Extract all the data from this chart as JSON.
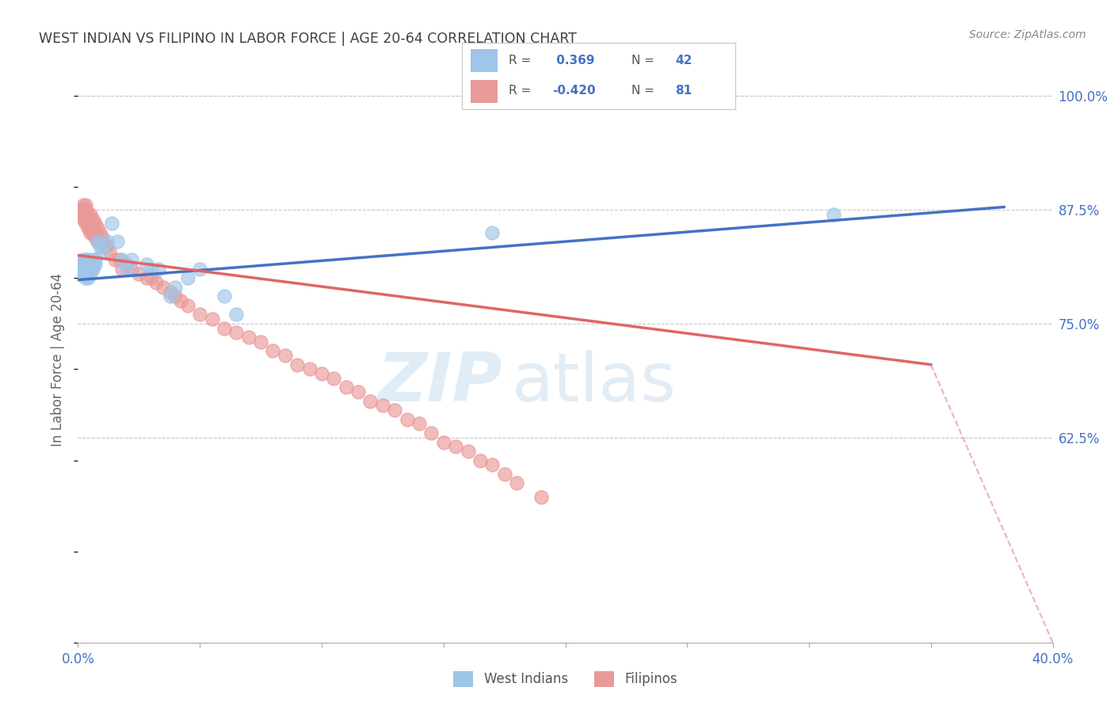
{
  "title": "WEST INDIAN VS FILIPINO IN LABOR FORCE | AGE 20-64 CORRELATION CHART",
  "source_text": "Source: ZipAtlas.com",
  "ylabel": "In Labor Force | Age 20-64",
  "xlim": [
    0.0,
    0.4
  ],
  "ylim": [
    0.4,
    1.02
  ],
  "yticks_right": [
    0.625,
    0.75,
    0.875,
    1.0
  ],
  "ytick_labels_right": [
    "62.5%",
    "75.0%",
    "87.5%",
    "100.0%"
  ],
  "legend_label_blue": "West Indians",
  "legend_label_pink": "Filipinos",
  "blue_scatter_color": "#9fc5e8",
  "pink_scatter_color": "#ea9999",
  "blue_line_color": "#4472c4",
  "pink_line_color": "#e06666",
  "axis_color": "#4472c4",
  "grid_color": "#c8c8c8",
  "title_color": "#404040",
  "blue_line_x0": 0.0,
  "blue_line_y0": 0.798,
  "blue_line_x1": 0.38,
  "blue_line_y1": 0.878,
  "pink_line_x0": 0.0,
  "pink_line_y0": 0.825,
  "pink_line_x1_solid": 0.35,
  "pink_line_y1_solid": 0.705,
  "pink_line_x1_dash": 0.4,
  "pink_line_y1_dash": 0.4,
  "west_indian_x": [
    0.001,
    0.001,
    0.001,
    0.002,
    0.002,
    0.002,
    0.002,
    0.003,
    0.003,
    0.003,
    0.003,
    0.004,
    0.004,
    0.004,
    0.004,
    0.005,
    0.005,
    0.006,
    0.006,
    0.006,
    0.007,
    0.007,
    0.008,
    0.009,
    0.01,
    0.012,
    0.014,
    0.016,
    0.018,
    0.02,
    0.022,
    0.028,
    0.03,
    0.033,
    0.038,
    0.04,
    0.045,
    0.05,
    0.06,
    0.065,
    0.17,
    0.31
  ],
  "west_indian_y": [
    0.81,
    0.805,
    0.815,
    0.82,
    0.815,
    0.81,
    0.805,
    0.82,
    0.815,
    0.81,
    0.8,
    0.82,
    0.81,
    0.8,
    0.815,
    0.81,
    0.805,
    0.82,
    0.815,
    0.81,
    0.82,
    0.815,
    0.84,
    0.835,
    0.83,
    0.84,
    0.86,
    0.84,
    0.82,
    0.81,
    0.82,
    0.815,
    0.81,
    0.81,
    0.78,
    0.79,
    0.8,
    0.81,
    0.78,
    0.76,
    0.85,
    0.87
  ],
  "filipino_x": [
    0.001,
    0.001,
    0.001,
    0.002,
    0.002,
    0.002,
    0.002,
    0.002,
    0.003,
    0.003,
    0.003,
    0.003,
    0.003,
    0.004,
    0.004,
    0.004,
    0.004,
    0.005,
    0.005,
    0.005,
    0.005,
    0.005,
    0.006,
    0.006,
    0.006,
    0.006,
    0.007,
    0.007,
    0.007,
    0.008,
    0.008,
    0.008,
    0.009,
    0.009,
    0.01,
    0.01,
    0.011,
    0.012,
    0.013,
    0.015,
    0.017,
    0.018,
    0.02,
    0.022,
    0.025,
    0.028,
    0.03,
    0.032,
    0.035,
    0.038,
    0.04,
    0.042,
    0.045,
    0.05,
    0.055,
    0.06,
    0.065,
    0.07,
    0.075,
    0.08,
    0.085,
    0.09,
    0.095,
    0.1,
    0.105,
    0.11,
    0.115,
    0.12,
    0.125,
    0.13,
    0.135,
    0.14,
    0.145,
    0.15,
    0.155,
    0.16,
    0.165,
    0.17,
    0.175,
    0.18,
    0.19
  ],
  "filipino_y": [
    0.87,
    0.87,
    0.875,
    0.88,
    0.875,
    0.87,
    0.865,
    0.875,
    0.88,
    0.87,
    0.86,
    0.875,
    0.865,
    0.87,
    0.86,
    0.865,
    0.855,
    0.87,
    0.86,
    0.855,
    0.865,
    0.85,
    0.865,
    0.855,
    0.86,
    0.85,
    0.86,
    0.85,
    0.845,
    0.855,
    0.845,
    0.84,
    0.85,
    0.84,
    0.845,
    0.84,
    0.835,
    0.835,
    0.83,
    0.82,
    0.82,
    0.81,
    0.815,
    0.81,
    0.805,
    0.8,
    0.8,
    0.795,
    0.79,
    0.785,
    0.78,
    0.775,
    0.77,
    0.76,
    0.755,
    0.745,
    0.74,
    0.735,
    0.73,
    0.72,
    0.715,
    0.705,
    0.7,
    0.695,
    0.69,
    0.68,
    0.675,
    0.665,
    0.66,
    0.655,
    0.645,
    0.64,
    0.63,
    0.62,
    0.615,
    0.61,
    0.6,
    0.595,
    0.585,
    0.575,
    0.56
  ]
}
